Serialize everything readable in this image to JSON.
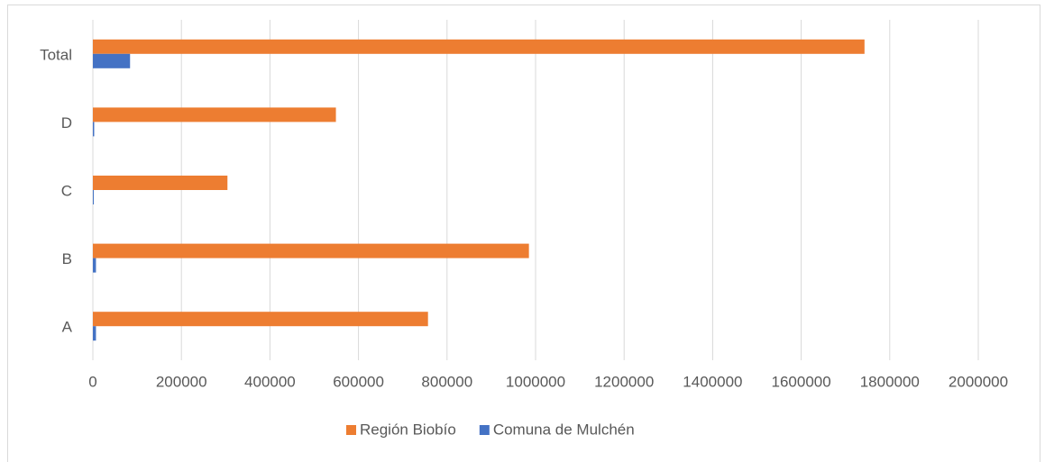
{
  "chart_data": {
    "type": "barh",
    "categories": [
      "A",
      "B",
      "C",
      "D",
      "Total"
    ],
    "series": [
      {
        "name": "Región Biobío",
        "color": "#ed7d31",
        "values": [
          757000,
          985000,
          304000,
          549000,
          1743000
        ]
      },
      {
        "name": "Comuna de Mulchén",
        "color": "#4472c4",
        "values": [
          7000,
          7000,
          2000,
          3000,
          84000
        ]
      }
    ],
    "xlim": [
      0,
      2000000
    ],
    "xticks": [
      0,
      200000,
      400000,
      600000,
      800000,
      1000000,
      1200000,
      1400000,
      1600000,
      1800000,
      2000000
    ],
    "grid": true,
    "legend": "bottom"
  }
}
